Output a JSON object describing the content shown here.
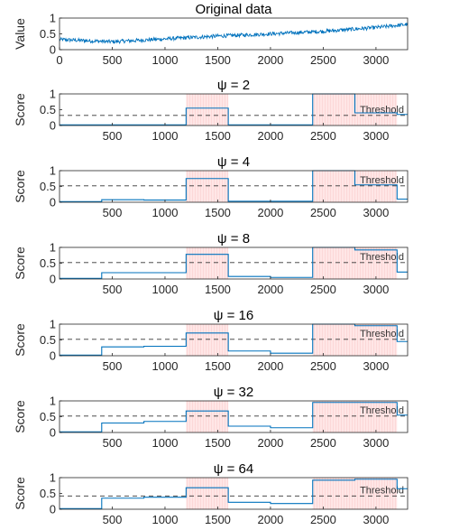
{
  "colors": {
    "series": "#0072BD",
    "threshold": "#333333",
    "anomaly_fill": "#FFE6E6",
    "anomaly_hatch": "#F4B6B6",
    "axis": "#262626"
  },
  "chart_data": [
    {
      "type": "line",
      "title": "Original data",
      "ylabel": "Value",
      "xlim": [
        0,
        3300
      ],
      "ylim": [
        0,
        1
      ],
      "x_ticks": [
        0,
        500,
        1000,
        1500,
        2000,
        2500,
        3000
      ],
      "y_ticks": [
        "0",
        "0.5",
        "1"
      ],
      "trend": [
        [
          0,
          0.32
        ],
        [
          500,
          0.25
        ],
        [
          1000,
          0.34
        ],
        [
          1500,
          0.43
        ],
        [
          2000,
          0.5
        ],
        [
          2500,
          0.58
        ],
        [
          3000,
          0.7
        ],
        [
          3300,
          0.8
        ]
      ],
      "noise_amplitude": 0.06
    },
    {
      "type": "line",
      "title": "ψ = 2",
      "ylabel": "Score",
      "xlim": [
        0,
        3300
      ],
      "ylim": [
        0,
        1
      ],
      "x_ticks": [
        500,
        1000,
        1500,
        2000,
        2500,
        3000
      ],
      "y_ticks": [
        "0",
        "0.5",
        "1"
      ],
      "threshold": 0.32,
      "threshold_label": "Threshold",
      "anomaly_regions": [
        [
          1200,
          1600
        ],
        [
          2400,
          3200
        ]
      ],
      "steps": [
        [
          0,
          0.02
        ],
        [
          1200,
          0.55
        ],
        [
          1600,
          0.02
        ],
        [
          2400,
          1.0
        ],
        [
          2800,
          0.4
        ],
        [
          3200,
          0.35
        ],
        [
          3300,
          0.35
        ]
      ]
    },
    {
      "type": "line",
      "title": "ψ = 4",
      "ylabel": "Score",
      "xlim": [
        0,
        3300
      ],
      "ylim": [
        0,
        1
      ],
      "x_ticks": [
        500,
        1000,
        1500,
        2000,
        2500,
        3000
      ],
      "y_ticks": [
        "0",
        "0.5",
        "1"
      ],
      "threshold": 0.52,
      "threshold_label": "Threshold",
      "anomaly_regions": [
        [
          1200,
          1600
        ],
        [
          2400,
          3200
        ]
      ],
      "steps": [
        [
          0,
          0.02
        ],
        [
          400,
          0.08
        ],
        [
          800,
          0.07
        ],
        [
          1200,
          0.75
        ],
        [
          1600,
          0.03
        ],
        [
          2400,
          1.0
        ],
        [
          2800,
          0.55
        ],
        [
          3200,
          0.1
        ],
        [
          3300,
          0.1
        ]
      ]
    },
    {
      "type": "line",
      "title": "ψ = 8",
      "ylabel": "Score",
      "xlim": [
        0,
        3300
      ],
      "ylim": [
        0,
        1
      ],
      "x_ticks": [
        500,
        1000,
        1500,
        2000,
        2500,
        3000
      ],
      "y_ticks": [
        "0",
        "0.5",
        "1"
      ],
      "threshold": 0.52,
      "threshold_label": "Threshold",
      "anomaly_regions": [
        [
          1200,
          1600
        ],
        [
          2400,
          3200
        ]
      ],
      "steps": [
        [
          0,
          0.02
        ],
        [
          400,
          0.2
        ],
        [
          800,
          0.2
        ],
        [
          1200,
          0.78
        ],
        [
          1600,
          0.08
        ],
        [
          2000,
          0.05
        ],
        [
          2400,
          1.0
        ],
        [
          2800,
          0.92
        ],
        [
          3200,
          0.22
        ],
        [
          3300,
          0.22
        ]
      ]
    },
    {
      "type": "line",
      "title": "ψ = 16",
      "ylabel": "Score",
      "xlim": [
        0,
        3300
      ],
      "ylim": [
        0,
        1
      ],
      "x_ticks": [
        500,
        1000,
        1500,
        2000,
        2500,
        3000
      ],
      "y_ticks": [
        "0",
        "0.5",
        "1"
      ],
      "threshold": 0.52,
      "threshold_label": "Threshold",
      "anomaly_regions": [
        [
          1200,
          1600
        ],
        [
          2400,
          3200
        ]
      ],
      "steps": [
        [
          0,
          0.02
        ],
        [
          400,
          0.28
        ],
        [
          800,
          0.3
        ],
        [
          1200,
          0.72
        ],
        [
          1600,
          0.15
        ],
        [
          2000,
          0.08
        ],
        [
          2400,
          1.0
        ],
        [
          2800,
          0.95
        ],
        [
          3200,
          0.45
        ],
        [
          3300,
          0.45
        ]
      ]
    },
    {
      "type": "line",
      "title": "ψ = 32",
      "ylabel": "Score",
      "xlim": [
        0,
        3300
      ],
      "ylim": [
        0,
        1
      ],
      "x_ticks": [
        500,
        1000,
        1500,
        2000,
        2500,
        3000
      ],
      "y_ticks": [
        "0",
        "0.5",
        "1"
      ],
      "threshold": 0.52,
      "threshold_label": "Threshold",
      "anomaly_regions": [
        [
          1200,
          1600
        ],
        [
          2400,
          3200
        ]
      ],
      "steps": [
        [
          0,
          0.02
        ],
        [
          400,
          0.3
        ],
        [
          800,
          0.35
        ],
        [
          1200,
          0.68
        ],
        [
          1600,
          0.2
        ],
        [
          2000,
          0.15
        ],
        [
          2400,
          0.95
        ],
        [
          2800,
          0.95
        ],
        [
          3200,
          0.55
        ],
        [
          3300,
          0.55
        ]
      ]
    },
    {
      "type": "line",
      "title": "ψ = 64",
      "ylabel": "Score",
      "xlim": [
        0,
        3300
      ],
      "ylim": [
        0,
        1
      ],
      "x_ticks": [
        500,
        1000,
        1500,
        2000,
        2500,
        3000
      ],
      "y_ticks": [
        "0",
        "0.5",
        "1"
      ],
      "threshold": 0.42,
      "threshold_label": "Threshold",
      "anomaly_regions": [
        [
          1200,
          1600
        ],
        [
          2400,
          3200
        ]
      ],
      "steps": [
        [
          0,
          0.02
        ],
        [
          400,
          0.35
        ],
        [
          800,
          0.38
        ],
        [
          1200,
          0.68
        ],
        [
          1600,
          0.22
        ],
        [
          2000,
          0.18
        ],
        [
          2400,
          0.92
        ],
        [
          2800,
          0.95
        ],
        [
          3200,
          0.65
        ],
        [
          3300,
          0.65
        ]
      ]
    }
  ]
}
